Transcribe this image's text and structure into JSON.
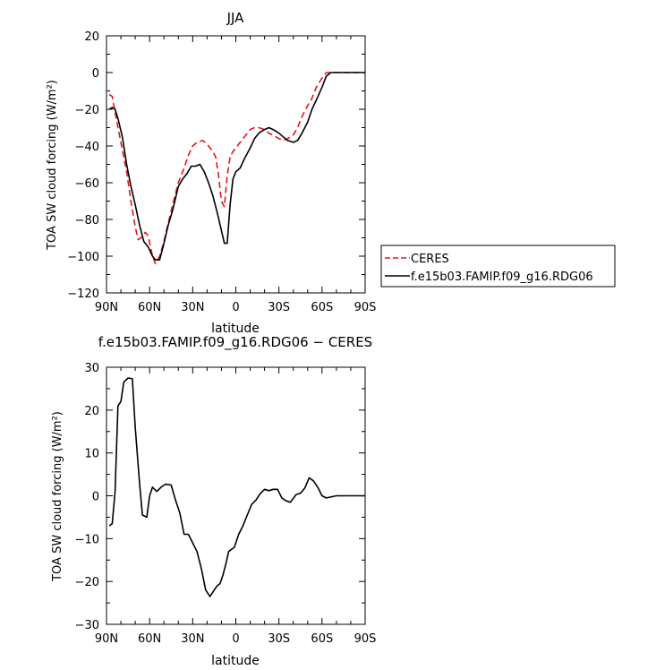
{
  "chart_data": [
    {
      "type": "line",
      "title": "JJA",
      "xlabel": "latitude",
      "ylabel": "TOA SW cloud forcing (W/m²)",
      "xlim": [
        90,
        -90
      ],
      "ylim": [
        -120,
        20
      ],
      "x_tick_values": [
        90,
        60,
        30,
        0,
        -30,
        -60,
        -90
      ],
      "x_tick_labels": [
        "90N",
        "60N",
        "30N",
        "0",
        "30S",
        "60S",
        "90S"
      ],
      "y_ticks": [
        -120,
        -100,
        -80,
        -60,
        -40,
        -20,
        0,
        20
      ],
      "legend_position": "right",
      "series": [
        {
          "name": "CERES",
          "color": "#e8141a",
          "dash": "dashed",
          "x": [
            88,
            86,
            82,
            78,
            76,
            73,
            70,
            68,
            66,
            63,
            61,
            58,
            56,
            53,
            50,
            47,
            44,
            40,
            36,
            33,
            30,
            27,
            23,
            20,
            18,
            16,
            14,
            12,
            10,
            8,
            6,
            4,
            2,
            0,
            -3,
            -6,
            -10,
            -13,
            -16,
            -20,
            -23,
            -26,
            -30,
            -33,
            -36,
            -40,
            -43,
            -46,
            -50,
            -53,
            -56,
            -60,
            -63,
            -66,
            -68,
            -70,
            -73,
            -76,
            -80,
            -85,
            -90
          ],
          "y": [
            -12,
            -13,
            -30,
            -46,
            -54,
            -70,
            -84,
            -91,
            -90,
            -87,
            -89,
            -100,
            -104,
            -100,
            -92,
            -82,
            -72,
            -60,
            -52,
            -45,
            -40,
            -38,
            -37,
            -39,
            -41,
            -43,
            -46,
            -56,
            -70,
            -73,
            -56,
            -46,
            -43,
            -41,
            -38,
            -35,
            -31,
            -30,
            -30,
            -31,
            -33,
            -34,
            -36,
            -37,
            -36,
            -34,
            -30,
            -24,
            -18,
            -14,
            -8,
            -3,
            0,
            0,
            0,
            0,
            0,
            0,
            0,
            0,
            0
          ]
        },
        {
          "name": "f.e15b03.FAMIP.f09_g16.RDG06",
          "color": "#000000",
          "dash": "solid",
          "x": [
            88,
            86,
            84,
            82,
            79,
            76,
            73,
            70,
            67,
            64,
            61,
            58,
            56,
            53,
            50,
            47,
            44,
            40,
            37,
            34,
            31,
            28,
            25,
            22,
            19,
            16,
            13,
            10,
            8,
            6,
            4,
            2,
            0,
            -3,
            -6,
            -10,
            -13,
            -16,
            -20,
            -23,
            -26,
            -30,
            -33,
            -36,
            -40,
            -43,
            -46,
            -50,
            -53,
            -56,
            -60,
            -63,
            -66,
            -70,
            -75,
            -80,
            -85,
            -90
          ],
          "y": [
            -20,
            -19,
            -20,
            -25,
            -35,
            -50,
            -62,
            -72,
            -83,
            -92,
            -95,
            -100,
            -102,
            -102,
            -93,
            -83,
            -75,
            -62,
            -58,
            -55,
            -51,
            -51,
            -50,
            -54,
            -60,
            -67,
            -76,
            -86,
            -93,
            -93,
            -72,
            -58,
            -54,
            -52,
            -47,
            -41,
            -36,
            -33,
            -31,
            -30,
            -31,
            -33,
            -35,
            -37,
            -38,
            -37,
            -33,
            -27,
            -20,
            -15,
            -8,
            -2,
            0,
            0,
            0,
            0,
            0,
            0
          ]
        }
      ]
    },
    {
      "type": "line",
      "title": "f.e15b03.FAMIP.f09_g16.RDG06 − CERES",
      "xlabel": "latitude",
      "ylabel": "TOA SW cloud forcing (W/m²)",
      "xlim": [
        90,
        -90
      ],
      "ylim": [
        -30,
        30
      ],
      "x_tick_values": [
        90,
        60,
        30,
        0,
        -30,
        -60,
        -90
      ],
      "x_tick_labels": [
        "90N",
        "60N",
        "30N",
        "0",
        "30S",
        "60S",
        "90S"
      ],
      "y_ticks": [
        -30,
        -20,
        -10,
        0,
        10,
        20,
        30
      ],
      "series": [
        {
          "color": "#000000",
          "dash": "solid",
          "x": [
            88,
            86,
            84,
            82,
            80,
            78,
            75,
            72,
            70,
            67,
            65,
            62,
            60,
            58,
            55,
            52,
            49,
            45,
            42,
            39,
            36,
            33,
            30,
            27,
            24,
            21,
            18,
            15,
            13,
            11,
            9,
            7,
            5,
            3,
            1,
            -2,
            -5,
            -8,
            -11,
            -14,
            -17,
            -20,
            -23,
            -26,
            -29,
            -32,
            -35,
            -38,
            -42,
            -45,
            -48,
            -51,
            -54,
            -57,
            -60,
            -63,
            -66,
            -70,
            -75,
            -80,
            -85,
            -90
          ],
          "y": [
            -7,
            -6.5,
            1,
            21,
            22,
            26.5,
            27.5,
            27.3,
            16,
            3,
            -4.5,
            -5,
            0,
            2,
            1,
            2,
            2.7,
            2.5,
            -1,
            -4,
            -9,
            -9,
            -11,
            -13,
            -17,
            -22,
            -23.5,
            -22,
            -21,
            -20.5,
            -18.5,
            -16,
            -13,
            -12.5,
            -12,
            -9,
            -7,
            -4.5,
            -2,
            -1,
            0.5,
            1.5,
            1.2,
            1.5,
            1.5,
            -0.5,
            -1.2,
            -1.5,
            0.3,
            0.6,
            1.8,
            4.2,
            3.5,
            2,
            0,
            -0.5,
            -0.3,
            0,
            0,
            0,
            0,
            0
          ]
        }
      ]
    }
  ]
}
